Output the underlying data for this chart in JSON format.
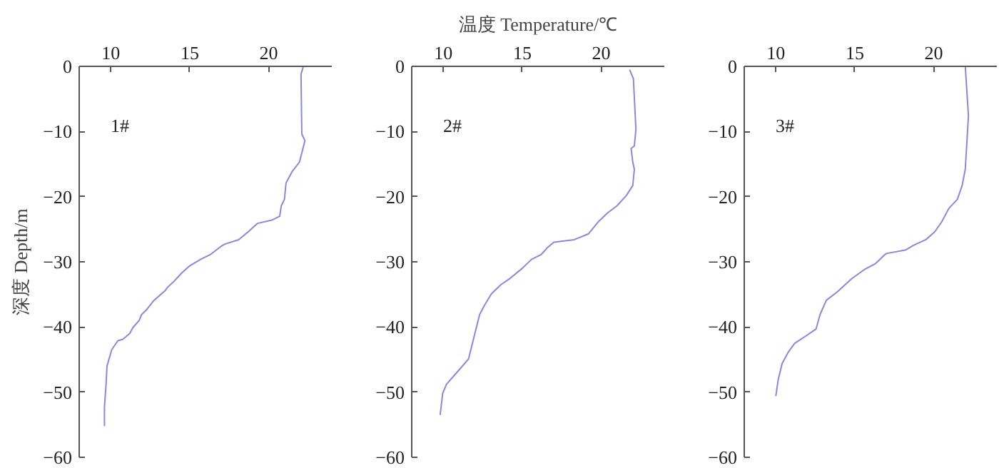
{
  "chart_data": [
    {
      "type": "line",
      "ylabel": "深度 Depth/m",
      "annotations": [
        "1#"
      ],
      "xlim": [
        8,
        24
      ],
      "xticks": [
        10,
        15,
        20
      ],
      "ylim": [
        -60,
        0
      ],
      "yticks": [
        0,
        {
          "value": -10,
          "label": "−10"
        },
        {
          "value": -20,
          "label": "−20"
        },
        {
          "value": -30,
          "label": "−30"
        },
        {
          "value": -40,
          "label": "−40"
        },
        {
          "value": -50,
          "label": "−50"
        },
        {
          "value": -60,
          "label": "−60"
        }
      ],
      "grid": false,
      "marker": "none",
      "line_style": "solid",
      "series": [
        {
          "color": "#8888dd",
          "x": [
            22.2,
            22.05,
            22.1,
            22.3,
            21.95,
            21.5,
            21.1,
            21.0,
            20.8,
            20.7,
            20.2,
            19.3,
            18.7,
            18.1,
            17.2,
            17.0,
            16.3,
            15.7,
            14.95,
            14.5,
            13.96,
            13.6,
            13.45,
            12.7,
            12.25,
            11.95,
            11.8,
            11.4,
            11.2,
            10.75,
            10.45,
            10.06,
            9.76,
            9.7,
            9.6,
            9.6
          ],
          "values": [
            0,
            -1.2,
            -10.4,
            -11.4,
            -14.7,
            -16.1,
            -17.9,
            -20.4,
            -21.4,
            -23.0,
            -23.6,
            -24.1,
            -25.4,
            -26.6,
            -27.3,
            -27.6,
            -28.9,
            -29.6,
            -30.7,
            -31.7,
            -33.1,
            -33.9,
            -34.4,
            -36.0,
            -37.4,
            -38.1,
            -39.0,
            -40.1,
            -41.0,
            -41.9,
            -42.1,
            -43.5,
            -46.0,
            -48.8,
            -52.3,
            -55.2
          ]
        }
      ]
    },
    {
      "type": "line",
      "xlabel": "温度 Temperature/℃",
      "annotations": [
        "2#"
      ],
      "xlim": [
        8,
        24
      ],
      "xticks": [
        10,
        15,
        20
      ],
      "ylim": [
        -60,
        0
      ],
      "yticks": [
        0,
        {
          "value": -10,
          "label": "−10"
        },
        {
          "value": -20,
          "label": "−20"
        },
        {
          "value": -30,
          "label": "−30"
        },
        {
          "value": -40,
          "label": "−40"
        },
        {
          "value": -50,
          "label": "−50"
        },
        {
          "value": -60,
          "label": "−60"
        }
      ],
      "grid": false,
      "marker": "none",
      "line_style": "solid",
      "series": [
        {
          "color": "#8888dd",
          "x": [
            21.8,
            22.04,
            22.2,
            22.1,
            21.9,
            22.0,
            22.1,
            22.0,
            21.6,
            21.0,
            20.4,
            19.8,
            19.2,
            18.3,
            17.0,
            16.6,
            16.2,
            15.6,
            15.0,
            14.25,
            13.65,
            13.05,
            12.6,
            12.3,
            12.0,
            11.6,
            10.96,
            10.2,
            9.96,
            9.8
          ],
          "values": [
            -0.5,
            -1.9,
            -9.7,
            -12.2,
            -12.6,
            -14.7,
            -15.8,
            -18.3,
            -19.8,
            -21.4,
            -22.5,
            -23.9,
            -25.7,
            -26.6,
            -27.0,
            -27.8,
            -28.9,
            -29.6,
            -31.0,
            -32.5,
            -33.5,
            -34.9,
            -36.7,
            -38.1,
            -41.0,
            -44.9,
            -46.7,
            -48.8,
            -50.2,
            -53.5
          ]
        }
      ]
    },
    {
      "type": "line",
      "annotations": [
        "3#"
      ],
      "xlim": [
        8,
        24
      ],
      "xticks": [
        10,
        15,
        20
      ],
      "ylim": [
        -60,
        0
      ],
      "yticks": [
        0,
        {
          "value": -10,
          "label": "−10"
        },
        {
          "value": -20,
          "label": "−20"
        },
        {
          "value": -30,
          "label": "−30"
        },
        {
          "value": -40,
          "label": "−40"
        },
        {
          "value": -50,
          "label": "−50"
        },
        {
          "value": -60,
          "label": "−60"
        }
      ],
      "grid": false,
      "marker": "none",
      "line_style": "solid",
      "series": [
        {
          "color": "#8888dd",
          "x": [
            22.0,
            22.2,
            22.0,
            21.8,
            21.5,
            20.96,
            20.5,
            20.06,
            19.5,
            18.7,
            18.2,
            17.05,
            16.9,
            16.3,
            15.6,
            14.8,
            13.9,
            13.2,
            12.8,
            12.55,
            11.95,
            11.2,
            10.8,
            10.4,
            10.15,
            10.0
          ],
          "values": [
            0,
            -7.6,
            -15.8,
            -18.3,
            -20.4,
            -21.8,
            -23.9,
            -25.4,
            -26.6,
            -27.5,
            -28.2,
            -28.7,
            -28.9,
            -30.3,
            -31.2,
            -32.6,
            -34.6,
            -35.9,
            -38.1,
            -40.3,
            -41.3,
            -42.5,
            -43.8,
            -45.6,
            -48.1,
            -50.6
          ]
        }
      ]
    }
  ]
}
